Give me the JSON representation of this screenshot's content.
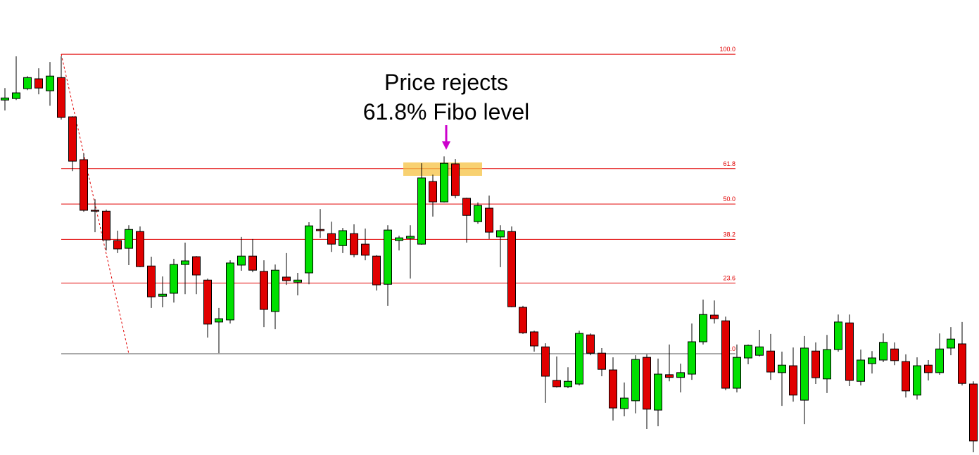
{
  "chart_data": {
    "type": "candlestick",
    "annotation": [
      "Price rejects",
      "61.8% Fibo level"
    ],
    "ylim": [
      -33.8,
      118.1
    ],
    "fib_levels": [
      {
        "value": 100,
        "label": "100.0"
      },
      61.8,
      {
        "value": 50,
        "label": "50.0"
      },
      38.2,
      23.6,
      {
        "value": 0,
        "label": "0.0"
      }
    ],
    "up_color": "#00e000",
    "down_color": "#e00000",
    "level_color": "#e00000",
    "open": [
      84.7,
      85.2,
      88.5,
      91.8,
      87.8,
      92.2,
      79.1,
      64.8,
      47.9,
      47.6,
      37.8,
      35.2,
      40.8,
      29.3,
      19.2,
      20.2,
      29.8,
      32.4,
      24.6,
      10.6,
      11.3,
      29.6,
      32.6,
      27.5,
      14.1,
      25.6,
      23.9,
      27.0,
      41.5,
      40.1,
      36.1,
      40.1,
      36.6,
      32.6,
      23.2,
      37.8,
      38.5,
      36.6,
      57.5,
      50.7,
      63.4,
      51.9,
      44.1,
      48.6,
      39.0,
      40.8,
      15.5,
      7.3,
      2.3,
      -8.9,
      -11.0,
      -10.1,
      6.3,
      0.2,
      -5.4,
      -18.3,
      -15.7,
      -1.2,
      -18.8,
      -7.0,
      -7.9,
      -6.8,
      4.0,
      12.9,
      11.0,
      -11.5,
      -1.4,
      -0.5,
      0.9,
      -6.3,
      -4.0,
      -15.5,
      0.9,
      -8.4,
      1.4,
      10.3,
      -9.2,
      -3.3,
      -2.1,
      1.6,
      -2.6,
      -13.8,
      -3.8,
      -6.3,
      1.9,
      3.3,
      -10.1
    ],
    "high": [
      88.7,
      99.3,
      92.7,
      95.3,
      97.4,
      99.3,
      79.3,
      66.9,
      51.6,
      48.1,
      41.1,
      42.9,
      42.5,
      32.4,
      25.8,
      31.7,
      37.1,
      32.6,
      25.1,
      15.3,
      31.2,
      39.0,
      38.3,
      31.2,
      29.8,
      33.6,
      27.0,
      43.9,
      48.3,
      44.1,
      42.0,
      43.2,
      41.8,
      32.9,
      42.9,
      39.4,
      42.9,
      63.6,
      59.8,
      65.9,
      65.0,
      52.1,
      50.5,
      52.8,
      42.9,
      42.5,
      16.0,
      7.7,
      3.5,
      -0.9,
      -4.5,
      7.7,
      6.8,
      1.9,
      -1.2,
      -9.6,
      -0.5,
      -0.2,
      -1.6,
      3.1,
      -3.3,
      10.1,
      18.1,
      17.8,
      12.4,
      3.1,
      3.1,
      8.0,
      6.6,
      0.7,
      2.1,
      5.9,
      3.8,
      6.3,
      13.1,
      13.1,
      1.4,
      0.9,
      6.8,
      3.8,
      -0.2,
      -1.2,
      -2.1,
      6.8,
      8.9,
      10.6,
      -9.2
    ],
    "low": [
      81.2,
      84.7,
      88.0,
      86.6,
      82.8,
      78.2,
      61.0,
      47.4,
      40.6,
      34.5,
      33.6,
      29.6,
      28.9,
      15.3,
      15.5,
      17.1,
      19.9,
      19.9,
      5.4,
      0.2,
      10.1,
      27.7,
      27.2,
      8.9,
      8.2,
      23.0,
      19.5,
      23.2,
      38.7,
      34.0,
      33.6,
      32.2,
      31.2,
      21.1,
      16.0,
      34.5,
      25.1,
      36.4,
      45.8,
      50.5,
      51.9,
      37.1,
      43.4,
      38.3,
      28.9,
      15.5,
      6.6,
      0.7,
      -16.4,
      -11.3,
      -11.5,
      -10.6,
      -0.5,
      -7.5,
      -22.3,
      -20.9,
      -19.9,
      -25.1,
      -24.2,
      -9.2,
      -12.9,
      -8.7,
      3.1,
      10.1,
      -12.2,
      -12.9,
      -3.5,
      -0.9,
      -8.7,
      -17.4,
      -16.0,
      -23.5,
      -10.1,
      -13.1,
      0.7,
      -10.8,
      -10.6,
      -6.6,
      -2.8,
      -3.8,
      -14.6,
      -15.3,
      -8.9,
      -7.0,
      -0.5,
      -10.6,
      -32.9
    ],
    "close": [
      85.4,
      87.1,
      92.2,
      88.7,
      92.7,
      78.9,
      64.3,
      47.9,
      47.6,
      38.0,
      35.0,
      41.5,
      29.1,
      19.0,
      19.9,
      29.8,
      31.0,
      26.3,
      9.9,
      11.7,
      30.3,
      32.6,
      27.9,
      14.8,
      27.9,
      24.4,
      24.6,
      42.7,
      41.1,
      36.6,
      41.1,
      33.1,
      32.9,
      23.0,
      41.3,
      38.7,
      39.2,
      58.7,
      50.7,
      63.6,
      52.8,
      46.2,
      49.5,
      40.6,
      41.1,
      15.7,
      7.0,
      2.6,
      -7.5,
      -11.0,
      -9.2,
      6.8,
      0.2,
      -5.2,
      -18.1,
      -14.8,
      -1.9,
      -18.5,
      -6.8,
      -7.9,
      -6.3,
      4.0,
      13.1,
      11.7,
      -11.5,
      -1.2,
      2.8,
      2.3,
      -6.1,
      -3.8,
      -13.8,
      1.9,
      -8.0,
      1.4,
      10.6,
      -8.9,
      -2.1,
      -1.4,
      3.8,
      -2.3,
      -12.4,
      -4.0,
      -6.3,
      1.6,
      4.9,
      -9.9,
      -29.1
    ]
  }
}
